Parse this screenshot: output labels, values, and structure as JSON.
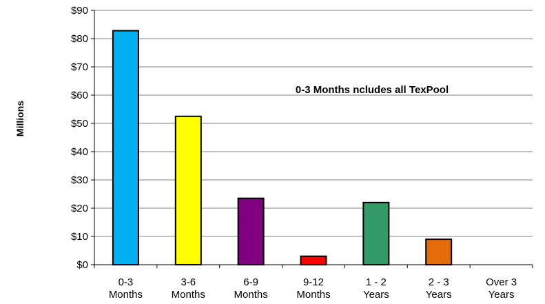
{
  "chart_data": {
    "type": "bar",
    "title": "",
    "xlabel": "",
    "ylabel": "Millions",
    "ylim": [
      0,
      90
    ],
    "y_ticks": [
      "$0",
      "$10",
      "$20",
      "$30",
      "$40",
      "$50",
      "$60",
      "$70",
      "$80",
      "$90"
    ],
    "categories": [
      [
        "0-3",
        "Months"
      ],
      [
        "3-6",
        "Months"
      ],
      [
        "6-9",
        "Months"
      ],
      [
        "9-12",
        "Months"
      ],
      [
        "1  -  2",
        "Years"
      ],
      [
        "2  -  3",
        "Years"
      ],
      [
        "Over 3",
        "Years"
      ]
    ],
    "values": [
      82.8,
      52.5,
      23.5,
      3.0,
      22.0,
      9.0,
      0
    ],
    "colors": [
      "#00b0f0",
      "#ffff00",
      "#800080",
      "#ff0000",
      "#339966",
      "#e46c0a",
      "#cccccc"
    ],
    "annotation": "0-3 Months ncludes all TexPool",
    "grid": true,
    "legend": "none"
  }
}
